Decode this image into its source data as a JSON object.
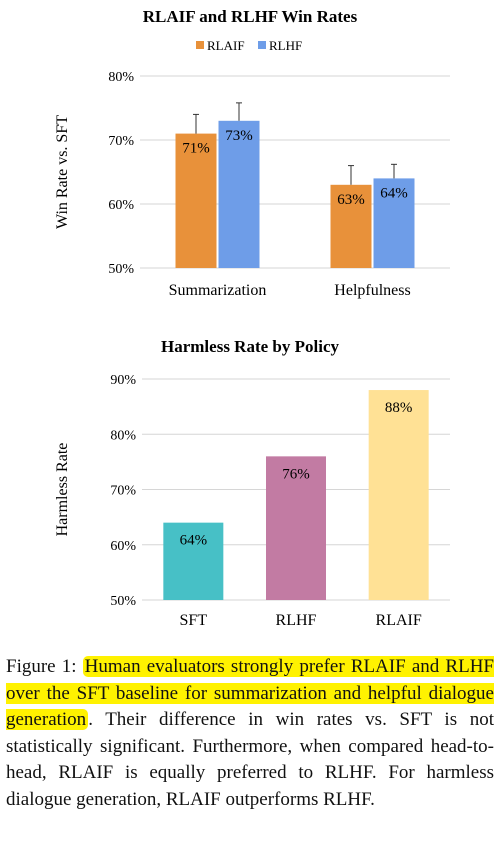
{
  "chart_data": [
    {
      "type": "bar",
      "title": "RLAIF and RLHF Win Rates",
      "ylabel": "Win Rate vs. SFT",
      "ylim": [
        50,
        80
      ],
      "yticks": [
        "50%",
        "60%",
        "70%",
        "80%"
      ],
      "categories": [
        "Summarization",
        "Helpfulness"
      ],
      "legend_position": "top",
      "grid": true,
      "series": [
        {
          "name": "RLAIF",
          "color": "#E8913A",
          "values": [
            71,
            63
          ],
          "labels": [
            "71%",
            "63%"
          ],
          "error_upper": [
            74,
            66
          ]
        },
        {
          "name": "RLHF",
          "color": "#6E9DE8",
          "values": [
            73,
            64
          ],
          "labels": [
            "73%",
            "64%"
          ],
          "error_upper": [
            75.8,
            66.2
          ]
        }
      ]
    },
    {
      "type": "bar",
      "title": "Harmless Rate by Policy",
      "ylabel": "Harmless Rate",
      "ylim": [
        50,
        90
      ],
      "yticks": [
        "50%",
        "60%",
        "70%",
        "80%",
        "90%"
      ],
      "categories": [
        "SFT",
        "RLHF",
        "RLAIF"
      ],
      "grid": true,
      "values": [
        64,
        76,
        88
      ],
      "labels": [
        "64%",
        "76%",
        "88%"
      ],
      "colors": [
        "#47C0C6",
        "#C27BA3",
        "#FFE195"
      ]
    }
  ],
  "caption": {
    "prefix": "Figure 1: ",
    "highlight": "Human evaluators strongly prefer RLAIF and RLHF over the SFT baseline for summarization and helpful dialogue generation",
    "after_highlight": ".",
    "rest": "Their difference in win rates vs. SFT is not statistically significant. Furthermore, when compared head-to-head, RLAIF is equally preferred to RLHF. For harmless dialogue generation, RLAIF outperforms RLHF."
  }
}
